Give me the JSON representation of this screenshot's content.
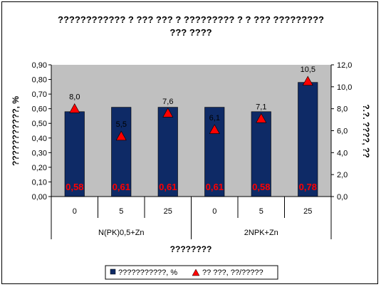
{
  "chart_data": {
    "type": "bar",
    "title_lines": [
      "???????????? ? ??? ??? ? ????????? ? ? ??? ?????????",
      "??? ????"
    ],
    "xlabel": "????????",
    "ylabel": "???????????, %",
    "y2label": "?.?. ????, ??",
    "groups": [
      {
        "label": "N(PK)0,5+Zn",
        "categories": [
          "0",
          "5",
          "25"
        ]
      },
      {
        "label": "2NPK+Zn",
        "categories": [
          "0",
          "5",
          "25"
        ]
      }
    ],
    "ylim": [
      0,
      0.9
    ],
    "y2lim": [
      0,
      12
    ],
    "yticks": [
      "0,00",
      "0,10",
      "0,20",
      "0,30",
      "0,40",
      "0,50",
      "0,60",
      "0,70",
      "0,80",
      "0,90"
    ],
    "y2ticks": [
      "0,0",
      "2,0",
      "4,0",
      "6,0",
      "8,0",
      "10,0",
      "12,0"
    ],
    "series": [
      {
        "name": "???????????, %",
        "kind": "bar",
        "values": [
          0.58,
          0.61,
          0.61,
          0.61,
          0.58,
          0.78
        ],
        "labels": [
          "0,58",
          "0,61",
          "0,61",
          "0,61",
          "0,58",
          "0,78"
        ],
        "color": "#0e2a66"
      },
      {
        "name": "?? ???, ??/?????",
        "kind": "marker",
        "axis": "secondary",
        "values": [
          8.0,
          5.5,
          7.6,
          6.1,
          7.1,
          10.5
        ],
        "labels": [
          "8,0",
          "5,5",
          "7,6",
          "6,1",
          "7,1",
          "10,5"
        ],
        "color": "#ff0000"
      }
    ],
    "plot_background": "#c0c0c0",
    "grid": false,
    "legend_position": "bottom"
  }
}
